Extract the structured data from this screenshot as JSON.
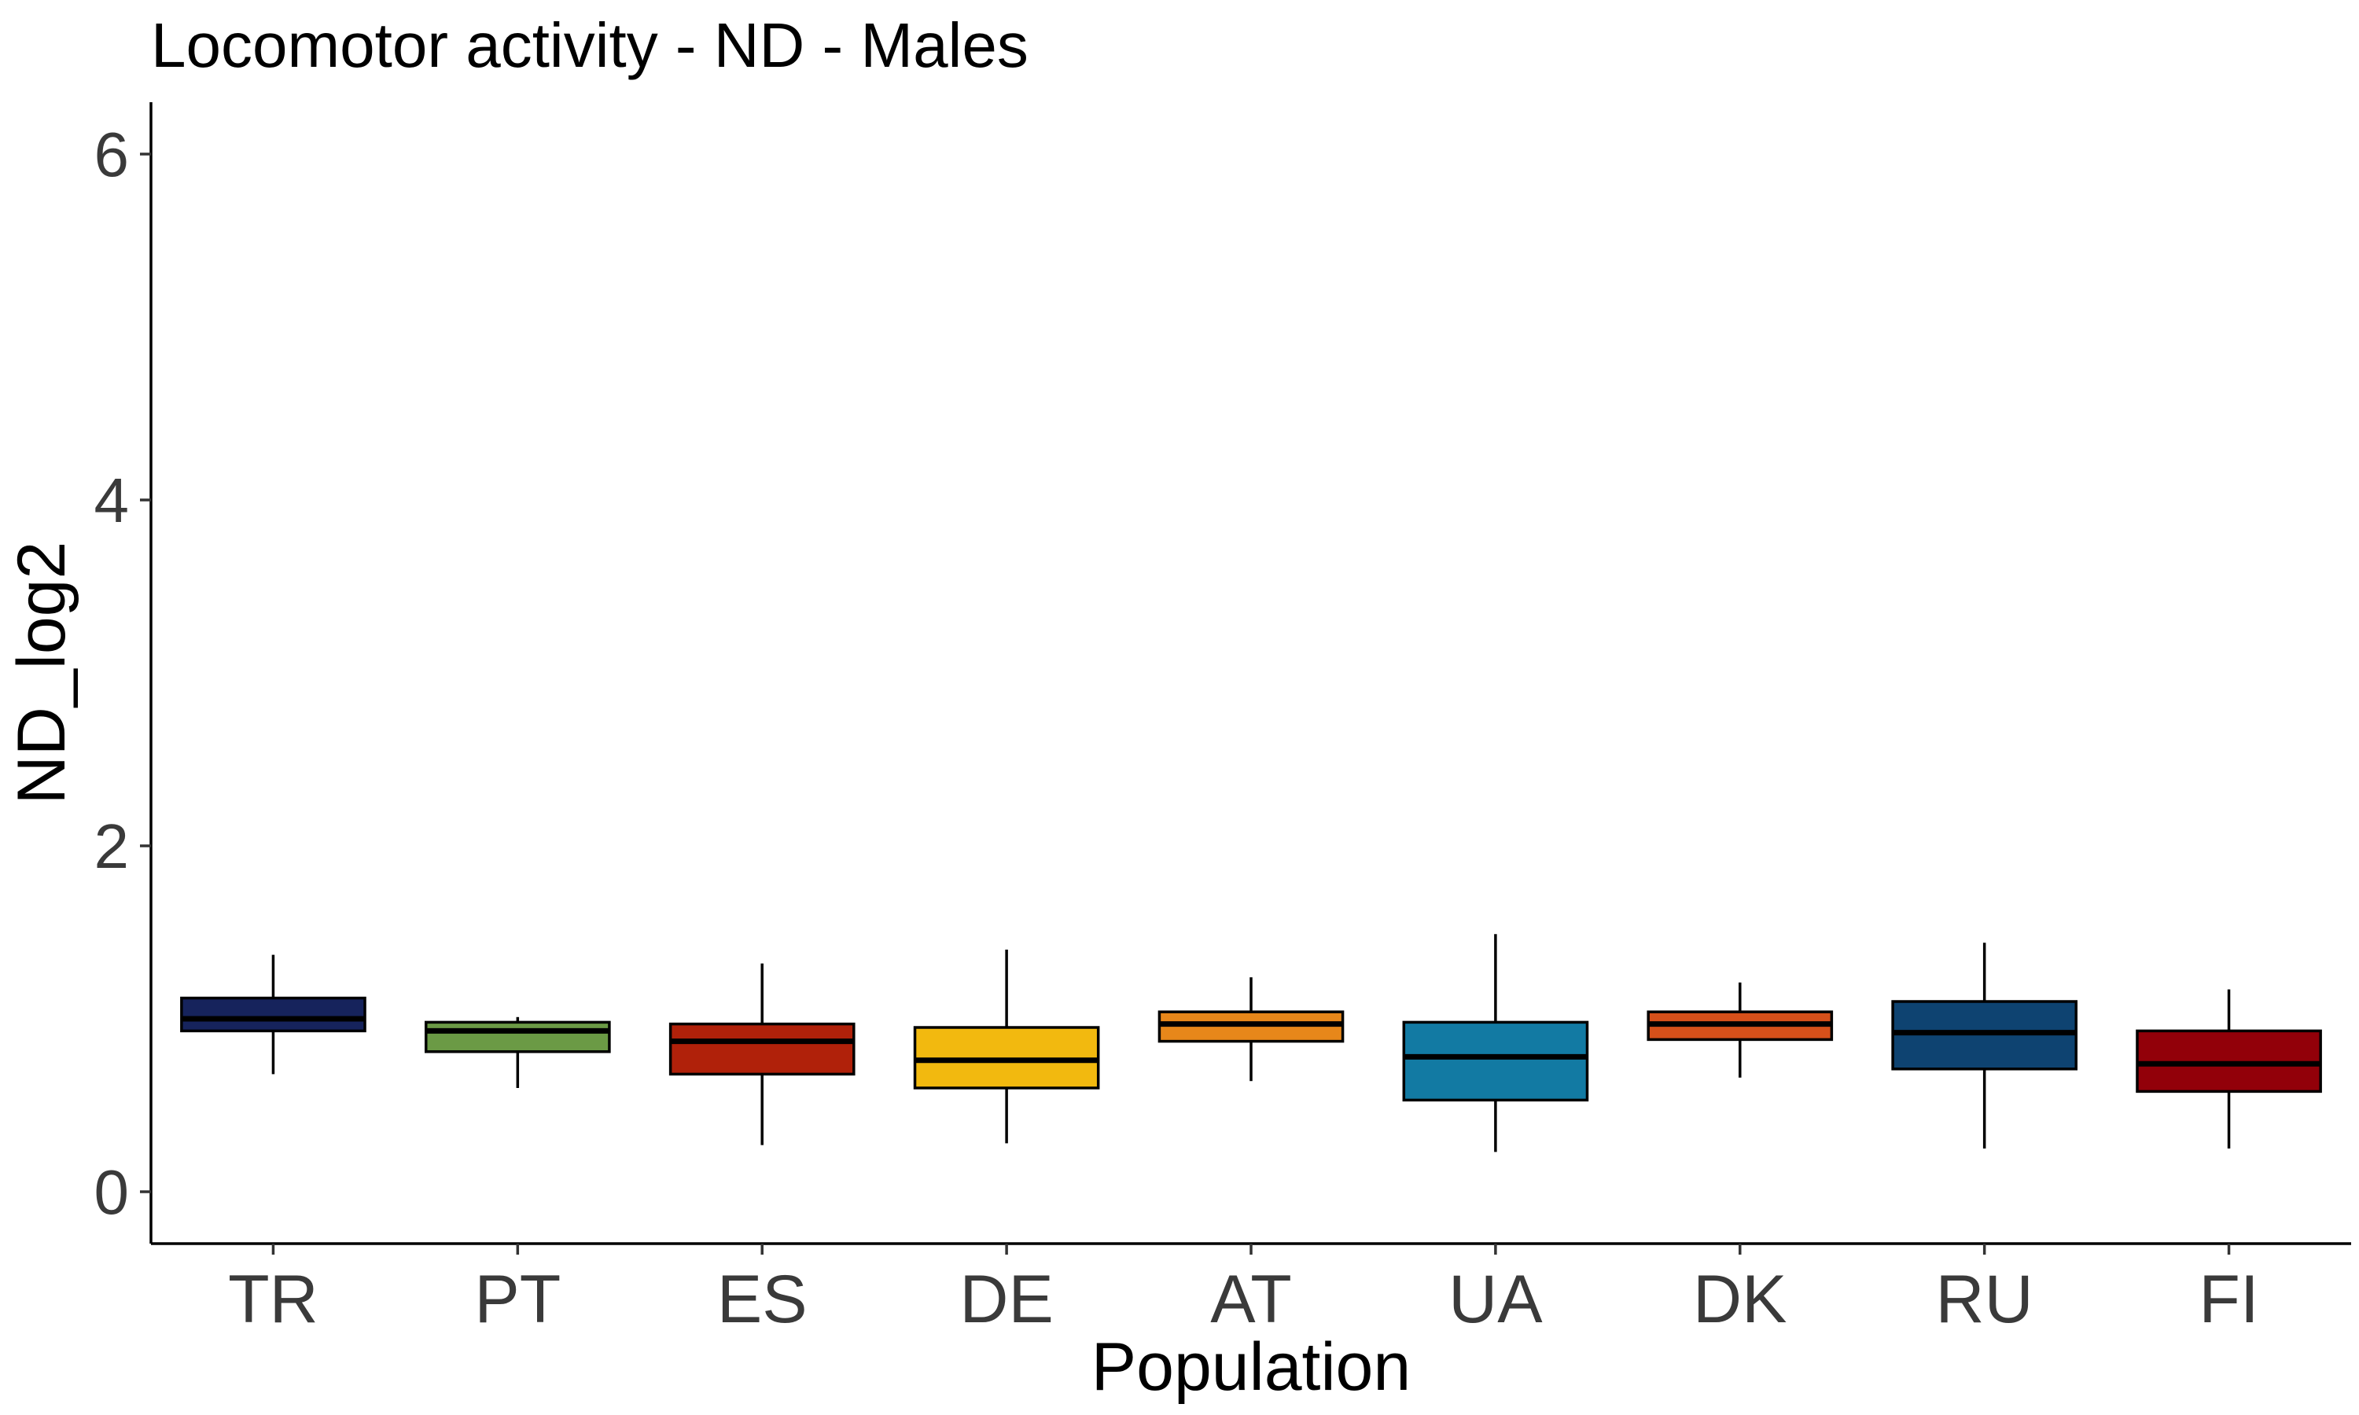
{
  "chart_data": {
    "type": "boxplot",
    "title": "Locomotor activity - ND - Males",
    "xlabel": "Population",
    "ylabel": "ND_log2",
    "ylim": [
      -0.3,
      6.3
    ],
    "yticks": [
      0,
      2,
      4,
      6
    ],
    "grid": false,
    "legend": "none",
    "categories": [
      "TR",
      "PT",
      "ES",
      "DE",
      "AT",
      "UA",
      "DK",
      "RU",
      "FI"
    ],
    "boxes": [
      {
        "category": "TR",
        "min": 0.68,
        "q1": 0.93,
        "median": 1.0,
        "q3": 1.12,
        "max": 1.37,
        "color": "#16235c"
      },
      {
        "category": "PT",
        "min": 0.6,
        "q1": 0.81,
        "median": 0.93,
        "q3": 0.98,
        "max": 1.01,
        "color": "#6b9a45"
      },
      {
        "category": "ES",
        "min": 0.27,
        "q1": 0.68,
        "median": 0.87,
        "q3": 0.97,
        "max": 1.32,
        "color": "#b0210a"
      },
      {
        "category": "DE",
        "min": 0.28,
        "q1": 0.6,
        "median": 0.76,
        "q3": 0.95,
        "max": 1.4,
        "color": "#f2b90f"
      },
      {
        "category": "AT",
        "min": 0.64,
        "q1": 0.87,
        "median": 0.97,
        "q3": 1.04,
        "max": 1.24,
        "color": "#e7871a"
      },
      {
        "category": "UA",
        "min": 0.23,
        "q1": 0.53,
        "median": 0.78,
        "q3": 0.98,
        "max": 1.49,
        "color": "#127aa3"
      },
      {
        "category": "DK",
        "min": 0.66,
        "q1": 0.88,
        "median": 0.97,
        "q3": 1.04,
        "max": 1.21,
        "color": "#d6501a"
      },
      {
        "category": "RU",
        "min": 0.25,
        "q1": 0.71,
        "median": 0.92,
        "q3": 1.1,
        "max": 1.44,
        "color": "#0e4371"
      },
      {
        "category": "FI",
        "min": 0.25,
        "q1": 0.58,
        "median": 0.74,
        "q3": 0.93,
        "max": 1.17,
        "color": "#920009"
      }
    ]
  }
}
